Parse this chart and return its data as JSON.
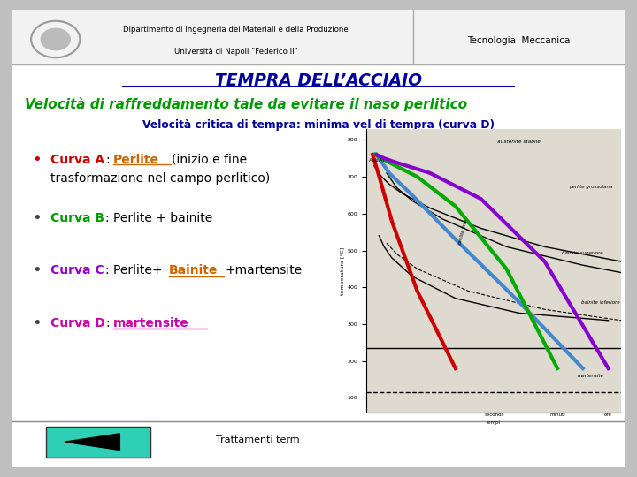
{
  "bg_color": "#c0c0c0",
  "slide_bg": "white",
  "header_text1": "Dipartimento di Ingegneria dei Materiali e della Produzione",
  "header_text2": "Università di Napoli \"Federico II\"",
  "header_right": "Tecnologia  Meccanica",
  "title": "TEMPRA DELL’ACCIAIO",
  "subtitle": "Velocità di raffreddamento tale da evitare il naso perlitico",
  "subheading": "Velocità critica di tempra: minima vel di tempra (curva D)",
  "footer_text": "Trattamenti term",
  "nav_btn_color": "#2ecfb5",
  "title_color": "#000099",
  "subtitle_color": "#009900",
  "subheading_color": "#000099",
  "curva_a_color": "#cc0000",
  "curva_b_color": "#009900",
  "curva_c_color": "#9900cc",
  "curva_d_color": "#cc00aa",
  "perlite_color": "#cc6600",
  "bainite_color": "#cc6600",
  "bullet_a_color": "#cc0000",
  "bullet_b_color": "#009900",
  "bullet_c_color": "#9900cc",
  "bullet_d_color": "#cc00aa",
  "line_red_color": "#cc0000",
  "line_blue_color": "#4488cc",
  "line_green_color": "#00aa00",
  "line_purple_color": "#8800cc"
}
